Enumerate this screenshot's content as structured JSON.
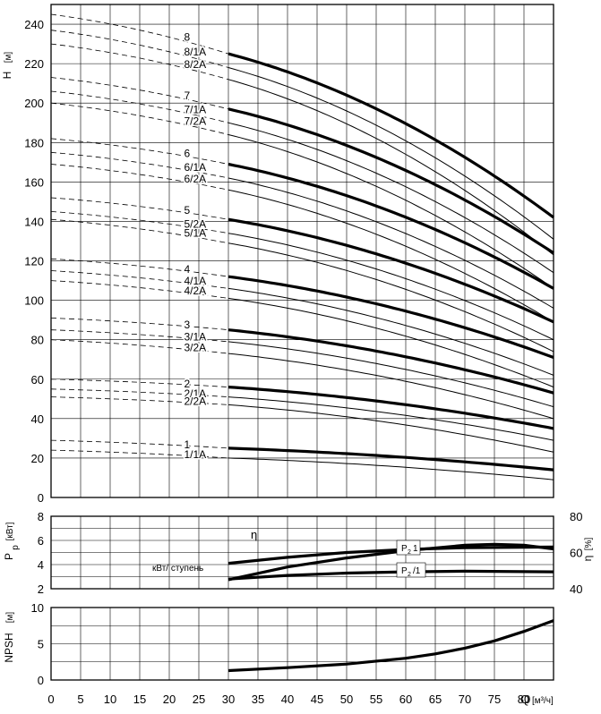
{
  "chart_data": [
    {
      "type": "line",
      "ylabel": "H",
      "yunit": "[м]",
      "xlim": [
        0,
        85
      ],
      "ylim": [
        0,
        250
      ],
      "xticks": [
        0,
        5,
        10,
        15,
        20,
        25,
        30,
        35,
        40,
        45,
        50,
        55,
        60,
        65,
        70,
        75,
        80
      ],
      "yticks": [
        0,
        20,
        40,
        60,
        80,
        100,
        120,
        140,
        160,
        180,
        200,
        220,
        240
      ],
      "series": [
        {
          "name": "8",
          "style": "thick",
          "y0": 245,
          "y30": 225,
          "y85": 142
        },
        {
          "name": "8/1A",
          "style": "thin",
          "y0": 237,
          "y30": 218,
          "y85": 131
        },
        {
          "name": "8/2A",
          "style": "thin",
          "y0": 230,
          "y30": 212,
          "y85": 123
        },
        {
          "name": "7",
          "style": "thick",
          "y0": 213,
          "y30": 197,
          "y85": 124
        },
        {
          "name": "7/1A",
          "style": "thin",
          "y0": 206,
          "y30": 190,
          "y85": 114
        },
        {
          "name": "7/2A",
          "style": "thin",
          "y0": 200,
          "y30": 184,
          "y85": 106
        },
        {
          "name": "6",
          "style": "thick",
          "y0": 182,
          "y30": 169,
          "y85": 106
        },
        {
          "name": "6/1A",
          "style": "thin",
          "y0": 175,
          "y30": 162,
          "y85": 96
        },
        {
          "name": "6/2A",
          "style": "thin",
          "y0": 169,
          "y30": 156,
          "y85": 89
        },
        {
          "name": "5",
          "style": "thick",
          "y0": 152,
          "y30": 141,
          "y85": 89
        },
        {
          "name": "5/2A",
          "style": "thin",
          "y0": 145,
          "y30": 134,
          "y85": 80
        },
        {
          "name": "5/1A",
          "style": "thin",
          "y0": 141,
          "y30": 129,
          "y85": 74
        },
        {
          "name": "4",
          "style": "thick",
          "y0": 121,
          "y30": 112,
          "y85": 71
        },
        {
          "name": "4/1A",
          "style": "thin",
          "y0": 115,
          "y30": 106,
          "y85": 62
        },
        {
          "name": "4/2A",
          "style": "thin",
          "y0": 110,
          "y30": 101,
          "y85": 56
        },
        {
          "name": "3",
          "style": "thick",
          "y0": 91,
          "y30": 85,
          "y85": 53
        },
        {
          "name": "3/1A",
          "style": "thin",
          "y0": 85,
          "y30": 79,
          "y85": 46
        },
        {
          "name": "3/2A",
          "style": "thin",
          "y0": 80,
          "y30": 73,
          "y85": 40
        },
        {
          "name": "2",
          "style": "thick",
          "y0": 60,
          "y30": 56,
          "y85": 35
        },
        {
          "name": "2/1A",
          "style": "thin",
          "y0": 55,
          "y30": 51,
          "y85": 29
        },
        {
          "name": "2/2A",
          "style": "thin",
          "y0": 51,
          "y30": 47,
          "y85": 23
        },
        {
          "name": "1",
          "style": "thick",
          "y0": 29,
          "y30": 25,
          "y85": 14
        },
        {
          "name": "1/1A",
          "style": "thin",
          "y0": 24,
          "y30": 20,
          "y85": 9
        }
      ]
    },
    {
      "type": "line",
      "ylabel": "P",
      "ylabel_sub": "p",
      "yunit": "[кВт]",
      "y2label": "η",
      "y2unit": "[%]",
      "xlim": [
        0,
        85
      ],
      "ylim": [
        2,
        8
      ],
      "y2lim": [
        40,
        80
      ],
      "yticks": [
        2,
        4,
        6,
        8
      ],
      "y2ticks": [
        40,
        60,
        80
      ],
      "annotation": "кВт/ ступень",
      "eta_label": "η",
      "p2_label_1": "P",
      "p2_sub": "2",
      "p2_suffix_1": "1",
      "p2_suffix_2": "/1",
      "series": [
        {
          "name": "η",
          "axis": "right",
          "x": [
            30,
            40,
            50,
            60,
            70,
            75,
            80,
            85
          ],
          "y": [
            45,
            52,
            57,
            61,
            64,
            64.5,
            64,
            62
          ]
        },
        {
          "name": "P2 1",
          "axis": "left",
          "x": [
            30,
            40,
            50,
            60,
            70,
            85
          ],
          "y": [
            4.1,
            4.6,
            5.0,
            5.25,
            5.4,
            5.45
          ]
        },
        {
          "name": "P2 /1",
          "axis": "left",
          "x": [
            30,
            40,
            50,
            60,
            70,
            85
          ],
          "y": [
            2.8,
            3.1,
            3.3,
            3.4,
            3.45,
            3.4
          ]
        }
      ]
    },
    {
      "type": "line",
      "ylabel": "NPSH",
      "yunit": "[м]",
      "xlabel": "Q",
      "xunit": "[м³/ч]",
      "xlim": [
        0,
        85
      ],
      "ylim": [
        0,
        10
      ],
      "yticks": [
        0,
        5,
        10
      ],
      "xticks": [
        0,
        5,
        10,
        15,
        20,
        25,
        30,
        35,
        40,
        45,
        50,
        55,
        60,
        65,
        70,
        75,
        80
      ],
      "series": [
        {
          "name": "NPSH",
          "x": [
            30,
            40,
            50,
            60,
            65,
            70,
            75,
            80,
            85
          ],
          "y": [
            1.3,
            1.7,
            2.2,
            3.0,
            3.6,
            4.4,
            5.4,
            6.7,
            8.2
          ]
        }
      ]
    }
  ]
}
